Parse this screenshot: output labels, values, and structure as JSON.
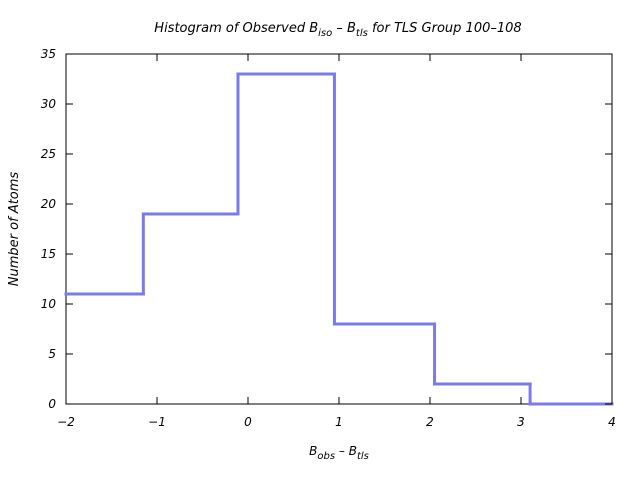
{
  "chart_data": {
    "type": "bar",
    "title": {
      "main": "Histogram of Observed B",
      "sub1": "iso",
      "mid": " – B",
      "sub2": "tls",
      "tail": " for TLS Group 100–108"
    },
    "xlabel": {
      "main": "B",
      "sub1": "obs",
      "mid": " – B",
      "sub2": "tls"
    },
    "ylabel": "Number of Atoms",
    "xlim": [
      -2,
      4
    ],
    "ylim": [
      0,
      35
    ],
    "x_ticks": [
      -2,
      -1,
      0,
      1,
      2,
      3,
      4
    ],
    "x_tick_labels": [
      "−2",
      "−1",
      "0",
      "1",
      "2",
      "3",
      "4"
    ],
    "y_ticks": [
      0,
      5,
      10,
      15,
      20,
      25,
      30,
      35
    ],
    "y_tick_labels": [
      "0",
      "5",
      "10",
      "15",
      "20",
      "25",
      "30",
      "35"
    ],
    "bin_edges": [
      -2.0,
      -1.15,
      -0.11,
      0.95,
      2.05,
      3.1,
      4.0
    ],
    "values": [
      11,
      19,
      33,
      8,
      2,
      0
    ],
    "line_color": "#7b7be8",
    "grid": false
  }
}
